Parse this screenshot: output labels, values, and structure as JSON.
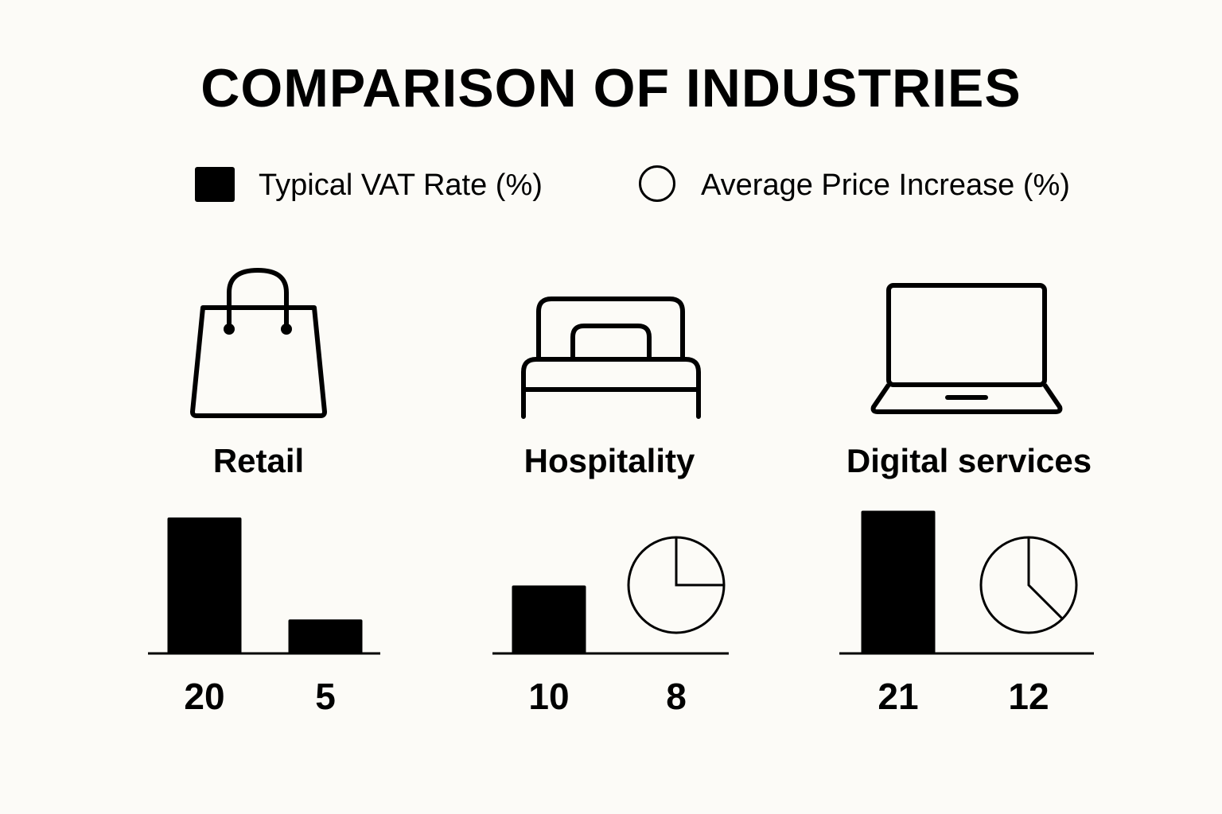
{
  "chart_data": {
    "type": "bar",
    "title": "COMPARISON OF INDUSTRIES",
    "legend": {
      "placement": "top",
      "entries": [
        {
          "name": "Typical VAT Rate (%)",
          "marker": "filled-square"
        },
        {
          "name": "Average Price Increase (%)",
          "marker": "circle"
        }
      ]
    },
    "categories": [
      "Retail",
      "Hospitality",
      "Digital services"
    ],
    "icons": [
      "shopping-bag-icon",
      "bed-icon",
      "laptop-icon"
    ],
    "series": [
      {
        "name": "Typical VAT Rate (%)",
        "values": [
          20,
          10,
          21
        ],
        "style": "bar"
      },
      {
        "name": "Average Price Increase (%)",
        "values": [
          5,
          8,
          12
        ],
        "style": "bar-or-pie"
      }
    ],
    "second_series_rendering": [
      "bar",
      "pie",
      "pie"
    ],
    "colors": {
      "mark": "#000000",
      "background": "#fcfbf7"
    }
  }
}
